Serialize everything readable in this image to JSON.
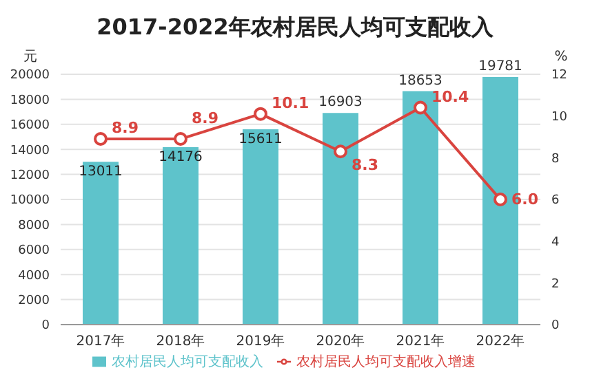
{
  "chart_data": {
    "type": "bar",
    "title": "2017-2022年农村居民人均可支配收入",
    "categories": [
      "2017年",
      "2018年",
      "2019年",
      "2020年",
      "2021年",
      "2022年"
    ],
    "series": [
      {
        "name": "农村居民人均可支配收入",
        "color": "#5ec3cb",
        "values": [
          13011,
          14176,
          15611,
          16903,
          18653,
          19781
        ]
      },
      {
        "name": "农村居民人均可支配收入增速",
        "type": "line",
        "axis": "y2",
        "color": "#d9443f",
        "values": [
          8.9,
          8.9,
          10.1,
          8.3,
          10.4,
          6.0
        ],
        "value_labels": [
          "8.9",
          "8.9",
          "10.1",
          "8.3",
          "10.4",
          "6.0"
        ]
      }
    ],
    "ylabel": "元",
    "y2label": "%",
    "ylim": [
      0,
      20000
    ],
    "yticks": [
      0,
      2000,
      4000,
      6000,
      8000,
      10000,
      12000,
      14000,
      16000,
      18000,
      20000
    ],
    "y2lim": [
      0,
      12
    ],
    "y2ticks": [
      0,
      2,
      4,
      6,
      8,
      10,
      12
    ],
    "grid": "y",
    "legend": "bottom",
    "marker": "circle",
    "data_labels": true
  }
}
